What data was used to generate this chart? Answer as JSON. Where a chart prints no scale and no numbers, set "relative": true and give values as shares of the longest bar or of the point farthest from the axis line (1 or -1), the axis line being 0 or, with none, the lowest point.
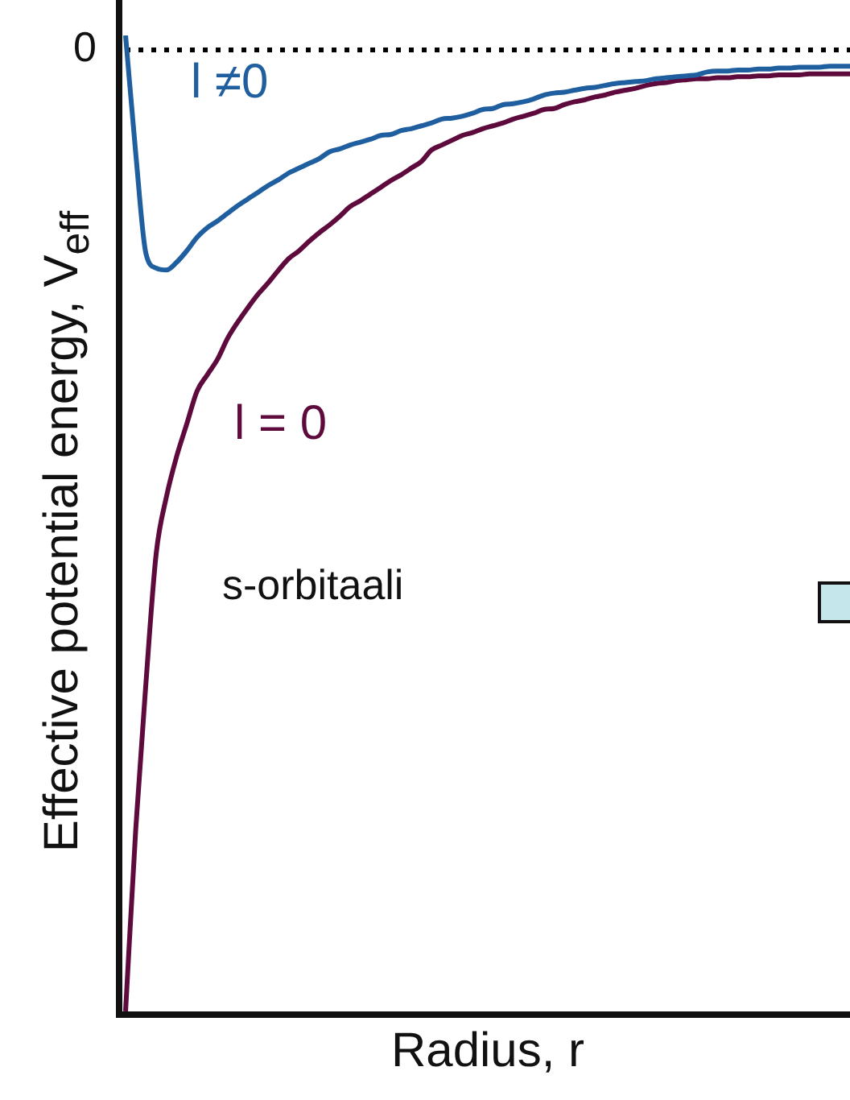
{
  "chart_data": {
    "type": "line",
    "relative": true,
    "xlabel": "Radius, r",
    "ylabel": "Effective potential energy, V$_{eff}$",
    "categories": [
      null,
      null,
      null,
      null,
      null,
      null,
      null,
      null,
      null,
      null,
      null,
      null,
      null,
      null,
      null,
      null,
      null,
      null,
      null,
      null,
      null,
      null,
      null,
      null,
      null,
      null,
      null,
      null,
      null,
      null,
      null,
      null,
      null,
      null,
      null,
      null,
      null,
      null,
      null,
      null,
      null,
      null,
      null,
      null,
      null,
      null,
      null,
      null,
      null,
      null,
      null,
      null,
      null,
      null,
      null,
      null,
      null,
      null,
      null,
      null,
      null,
      null,
      null,
      null,
      null,
      null,
      null,
      null,
      null,
      null,
      null,
      null
    ],
    "series": [
      {
        "name": "l ≠0",
        "color": "#1f5f9f",
        "values": [
          0.015,
          -0.108,
          -0.212,
          -0.227,
          -0.229,
          -0.221,
          -0.209,
          -0.195,
          -0.185,
          -0.178,
          -0.17,
          -0.162,
          -0.155,
          -0.148,
          -0.141,
          -0.135,
          -0.128,
          -0.123,
          -0.118,
          -0.113,
          -0.106,
          -0.103,
          -0.099,
          -0.096,
          -0.093,
          -0.089,
          -0.088,
          -0.084,
          -0.082,
          -0.079,
          -0.076,
          -0.072,
          -0.071,
          -0.069,
          -0.066,
          -0.062,
          -0.061,
          -0.057,
          -0.056,
          -0.054,
          -0.051,
          -0.047,
          -0.045,
          -0.044,
          -0.042,
          -0.04,
          -0.039,
          -0.037,
          -0.035,
          -0.034,
          -0.033,
          -0.032,
          -0.03,
          -0.029,
          -0.028,
          -0.027,
          -0.026,
          -0.023,
          -0.022,
          -0.022,
          -0.021,
          -0.021,
          -0.02,
          -0.02,
          -0.019,
          -0.019,
          -0.018,
          -0.018,
          -0.018,
          -0.017,
          -0.017,
          -0.017
        ]
      },
      {
        "name": "l = 0",
        "color": "#5e0a3c",
        "values": [
          -1.0,
          -0.81,
          -0.658,
          -0.524,
          -0.465,
          -0.423,
          -0.389,
          -0.355,
          -0.338,
          -0.322,
          -0.3,
          -0.283,
          -0.268,
          -0.254,
          -0.242,
          -0.229,
          -0.217,
          -0.209,
          -0.199,
          -0.19,
          -0.182,
          -0.173,
          -0.163,
          -0.157,
          -0.15,
          -0.143,
          -0.136,
          -0.13,
          -0.123,
          -0.116,
          -0.104,
          -0.099,
          -0.094,
          -0.089,
          -0.086,
          -0.082,
          -0.079,
          -0.076,
          -0.072,
          -0.069,
          -0.066,
          -0.062,
          -0.061,
          -0.057,
          -0.054,
          -0.052,
          -0.049,
          -0.047,
          -0.044,
          -0.042,
          -0.04,
          -0.037,
          -0.035,
          -0.034,
          -0.032,
          -0.031,
          -0.03,
          -0.03,
          -0.029,
          -0.029,
          -0.028,
          -0.028,
          -0.027,
          -0.027,
          -0.026,
          -0.026,
          -0.026,
          -0.025,
          -0.025,
          -0.025,
          -0.025,
          -0.025
        ]
      }
    ],
    "ref_lines": [
      {
        "axis": "y",
        "value": 0,
        "label": "0",
        "color": "#000000",
        "line_style": "dotted"
      }
    ],
    "annotations": [
      "s-orbitaali"
    ],
    "legend": false
  }
}
